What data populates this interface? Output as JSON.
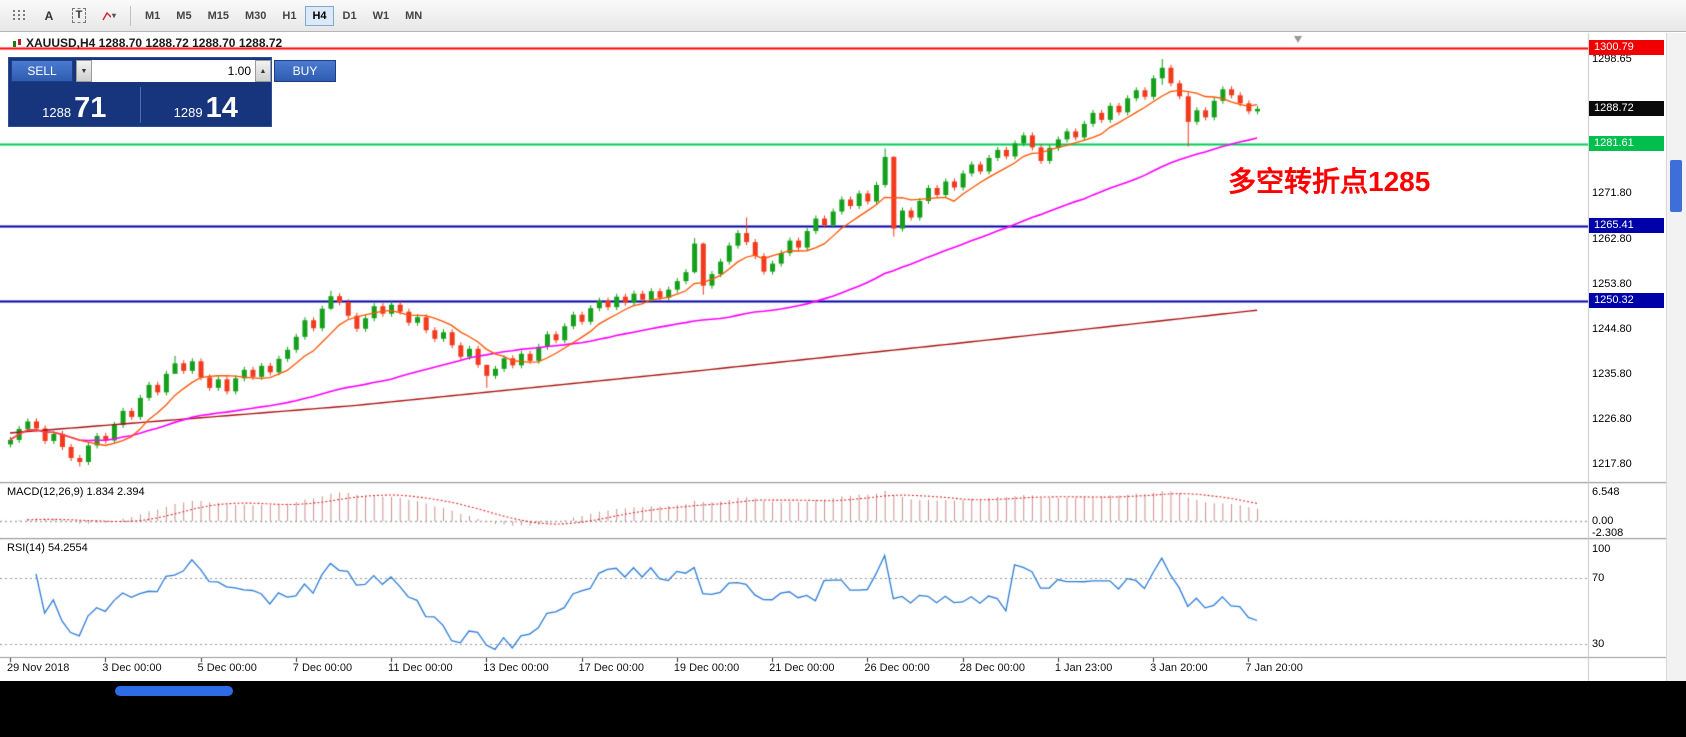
{
  "toolbar": {
    "tools": [
      {
        "id": "grid"
      },
      {
        "id": "cursor",
        "glyph": "A"
      },
      {
        "id": "text",
        "glyph": "T"
      },
      {
        "id": "polyline",
        "caret": "▾"
      }
    ],
    "timeframes": [
      {
        "label": "M1",
        "active": false
      },
      {
        "label": "M5",
        "active": false
      },
      {
        "label": "M15",
        "active": false
      },
      {
        "label": "M30",
        "active": false
      },
      {
        "label": "H1",
        "active": false
      },
      {
        "label": "H4",
        "active": true
      },
      {
        "label": "D1",
        "active": false
      },
      {
        "label": "W1",
        "active": false
      },
      {
        "label": "MN",
        "active": false
      }
    ]
  },
  "chart": {
    "title": "XAUUSD,H4 1288.70 1288.72 1288.70 1288.72",
    "annotation": {
      "text": "多空转折点1285",
      "color": "#ff0000"
    },
    "y_ticks": [
      {
        "label": "1298.65",
        "value": 1298.65
      },
      {
        "label": "1271.80",
        "value": 1271.8
      },
      {
        "label": "1262.80",
        "value": 1262.8
      },
      {
        "label": "1253.80",
        "value": 1253.8
      },
      {
        "label": "1244.80",
        "value": 1244.8
      },
      {
        "label": "1235.80",
        "value": 1235.8
      },
      {
        "label": "1226.80",
        "value": 1226.8
      },
      {
        "label": "1217.80",
        "value": 1217.8
      }
    ],
    "badges": [
      {
        "label": "1300.79",
        "value": 1300.79,
        "bg": "#f00000"
      },
      {
        "label": "1288.72",
        "value": 1288.72,
        "bg": "#0a0a0a"
      },
      {
        "label": "1281.61",
        "value": 1281.61,
        "bg": "#00bf4e"
      },
      {
        "label": "1265.41",
        "value": 1265.41,
        "bg": "#0000a8"
      },
      {
        "label": "1250.32",
        "value": 1250.32,
        "bg": "#0000a8"
      }
    ],
    "hlines": [
      {
        "price": 1300.79,
        "color": "#ff0000"
      },
      {
        "price": 1281.61,
        "color": "#00ce55"
      },
      {
        "price": 1265.41,
        "color": "#0000a8"
      },
      {
        "price": 1250.32,
        "color": "#0000a8"
      }
    ]
  },
  "trade_panel": {
    "sell_label": "SELL",
    "buy_label": "BUY",
    "volume": "1.00",
    "spinner_down_glyph": "▼",
    "spinner_up_glyph": "▲",
    "sell_price": {
      "small": "1288",
      "big": "71"
    },
    "buy_price": {
      "small": "1289",
      "big": "14"
    }
  },
  "indicators": {
    "macd": {
      "label": "MACD(12,26,9) 1.834 2.394",
      "main_value": 1.834,
      "signal_value": 2.394,
      "axis": [
        {
          "label": "6.548",
          "value": 6.548
        },
        {
          "label": "0.00",
          "value": 0
        },
        {
          "label": "-2.308",
          "value": -2.308
        }
      ]
    },
    "rsi": {
      "label": "RSI(14) 54.2554",
      "value": 54.2554,
      "levels": [
        70,
        30
      ],
      "axis": [
        {
          "label": "100",
          "value": 100
        },
        {
          "label": "70",
          "value": 70
        },
        {
          "label": "30",
          "value": 30
        }
      ]
    }
  },
  "time_axis": [
    {
      "label": "29 Nov 2018",
      "bar": 0
    },
    {
      "label": "3 Dec 00:00",
      "bar": 11
    },
    {
      "label": "5 Dec 00:00",
      "bar": 22
    },
    {
      "label": "7 Dec 00:00",
      "bar": 33
    },
    {
      "label": "11 Dec 00:00",
      "bar": 44
    },
    {
      "label": "13 Dec 00:00",
      "bar": 55
    },
    {
      "label": "17 Dec 00:00",
      "bar": 66
    },
    {
      "label": "19 Dec 00:00",
      "bar": 77
    },
    {
      "label": "21 Dec 00:00",
      "bar": 88
    },
    {
      "label": "26 Dec 00:00",
      "bar": 99
    },
    {
      "label": "28 Dec 00:00",
      "bar": 110
    },
    {
      "label": "1 Jan 23:00",
      "bar": 121
    },
    {
      "label": "3 Jan 20:00",
      "bar": 132
    },
    {
      "label": "7 Jan 20:00",
      "bar": 143
    }
  ],
  "chart_data": {
    "type": "candlestick",
    "symbol": "XAUUSD",
    "timeframe": "H4",
    "ohlc_current": {
      "open": "1288.70",
      "high": "1288.72",
      "low": "1288.70",
      "close": "1288.72"
    },
    "last_price": 1288.72,
    "levels": [
      1300.79,
      1281.61,
      1265.41,
      1250.32
    ],
    "colors": {
      "up": "#15a01c",
      "down": "#f23a1d",
      "ma_fast": "#ff5502",
      "ma_mid": "#ff00ff",
      "ma_slow": "#a81414",
      "rsi": "#2f7ed8",
      "macd_hist": "#cf9090",
      "macd_signal": "#e03030"
    },
    "closes": [
      1222.6,
      1224.8,
      1226.3,
      1224.9,
      1222.4,
      1223.8,
      1221.2,
      1219.0,
      1218.2,
      1221.5,
      1223.4,
      1222.5,
      1225.6,
      1228.4,
      1227.2,
      1231.0,
      1233.6,
      1232.1,
      1235.8,
      1237.9,
      1236.4,
      1238.3,
      1235.1,
      1233.0,
      1234.7,
      1232.3,
      1234.9,
      1236.6,
      1235.2,
      1237.4,
      1236.1,
      1238.8,
      1240.6,
      1243.2,
      1246.5,
      1244.9,
      1248.8,
      1251.3,
      1250.1,
      1247.4,
      1244.8,
      1246.9,
      1249.3,
      1247.8,
      1249.6,
      1248.2,
      1246.0,
      1247.1,
      1244.5,
      1242.8,
      1244.1,
      1241.5,
      1239.2,
      1240.8,
      1237.6,
      1235.4,
      1236.8,
      1238.9,
      1237.5,
      1239.8,
      1238.4,
      1241.2,
      1243.7,
      1242.5,
      1245.3,
      1247.6,
      1246.2,
      1248.9,
      1250.4,
      1249.1,
      1251.2,
      1250.0,
      1251.8,
      1250.6,
      1252.3,
      1251.0,
      1252.6,
      1254.3,
      1256.1,
      1261.8,
      1253.4,
      1255.7,
      1258.2,
      1261.4,
      1263.9,
      1262.1,
      1259.3,
      1256.2,
      1257.8,
      1259.9,
      1262.4,
      1261.0,
      1264.3,
      1266.8,
      1265.5,
      1268.2,
      1270.6,
      1269.3,
      1271.8,
      1270.2,
      1273.5,
      1279.1,
      1264.8,
      1268.4,
      1267.0,
      1270.3,
      1272.9,
      1271.5,
      1274.2,
      1273.0,
      1275.8,
      1277.6,
      1276.2,
      1278.9,
      1280.5,
      1279.2,
      1281.8,
      1283.4,
      1281.0,
      1278.3,
      1280.9,
      1282.6,
      1284.2,
      1283.0,
      1285.7,
      1287.9,
      1286.5,
      1289.3,
      1288.0,
      1290.8,
      1292.4,
      1291.1,
      1294.8,
      1296.9,
      1293.8,
      1291.2,
      1286.1,
      1288.4,
      1287.0,
      1290.3,
      1292.6,
      1291.4,
      1289.8,
      1288.2,
      1288.7
    ],
    "wick_overrides": {
      "8": [
        1219.6,
        1217.3
      ],
      "19": [
        1239.4,
        1236.0
      ],
      "37": [
        1252.4,
        1248.5
      ],
      "55": [
        1237.2,
        1233.0
      ],
      "79": [
        1262.9,
        1255.8
      ],
      "80": [
        1262.0,
        1251.6
      ],
      "85": [
        1267.0,
        1261.5
      ],
      "101": [
        1280.8,
        1273.0
      ],
      "102": [
        1279.3,
        1263.2
      ],
      "133": [
        1298.65,
        1293.5
      ],
      "136": [
        1292.0,
        1281.2
      ]
    },
    "ma_slow_points": [
      [
        0,
        1224.0
      ],
      [
        40,
        1229.5
      ],
      [
        80,
        1236.5
      ],
      [
        110,
        1242.0
      ],
      [
        144,
        1248.5
      ]
    ]
  }
}
